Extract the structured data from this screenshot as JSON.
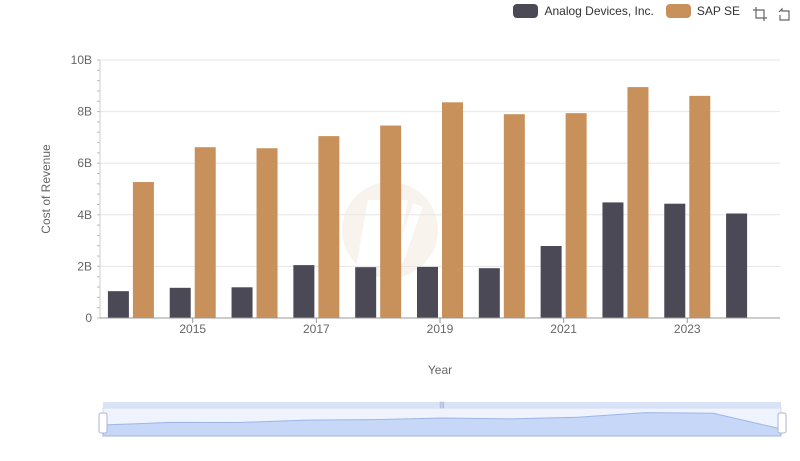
{
  "legend": {
    "items": [
      {
        "label": "Analog Devices, Inc.",
        "color": "#4a4955"
      },
      {
        "label": "SAP SE",
        "color": "#c8915c"
      }
    ]
  },
  "toolbox": {
    "icons": [
      "zoom-select-icon",
      "zoom-reset-icon"
    ]
  },
  "chart_data": {
    "type": "bar",
    "categories": [
      "2014",
      "2015",
      "2016",
      "2017",
      "2018",
      "2019",
      "2020",
      "2021",
      "2022",
      "2023",
      "2024"
    ],
    "x_tick_labels": [
      "2015",
      "2017",
      "2019",
      "2021",
      "2023"
    ],
    "xlabel": "Year",
    "ylabel": "Cost of Revenue",
    "ylim": [
      0,
      10000000000
    ],
    "y_tick_labels": [
      "0",
      "2B",
      "4B",
      "6B",
      "8B",
      "10B"
    ],
    "grid": true,
    "legend_position": "top-right",
    "series": [
      {
        "name": "Analog Devices, Inc.",
        "color": "#4a4955",
        "values": [
          1040000000,
          1170000000,
          1190000000,
          2050000000,
          1970000000,
          1980000000,
          1930000000,
          2790000000,
          4480000000,
          4430000000,
          4050000000
        ]
      },
      {
        "name": "SAP SE",
        "color": "#c8915c",
        "values": [
          5270000000,
          6620000000,
          6580000000,
          7050000000,
          7460000000,
          8360000000,
          7900000000,
          7940000000,
          8950000000,
          8610000000,
          null
        ]
      }
    ]
  }
}
